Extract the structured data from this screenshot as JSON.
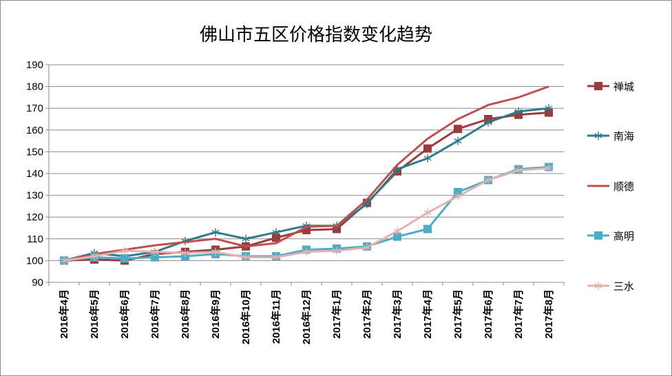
{
  "chart_data": {
    "type": "line",
    "title": "佛山市五区价格指数变化趋势",
    "xlabel": "",
    "ylabel": "",
    "ylim": [
      90,
      190
    ],
    "yticks": [
      90,
      100,
      110,
      120,
      130,
      140,
      150,
      160,
      170,
      180,
      190
    ],
    "grid": true,
    "legend_position": "right",
    "categories": [
      "2016年4月",
      "2016年5月",
      "2016年6月",
      "2016年7月",
      "2016年8月",
      "2016年9月",
      "2016年10月",
      "2016年11月",
      "2016年12月",
      "2017年1月",
      "2017年2月",
      "2017年3月",
      "2017年4月",
      "2017年5月",
      "2017年6月",
      "2017年7月",
      "2017年8月"
    ],
    "series": [
      {
        "name": "禅城",
        "color": "#9b3b3b",
        "marker": "square",
        "values": [
          100,
          100.5,
          100,
          103,
          104,
          105,
          106.5,
          110.5,
          114,
          114.5,
          126.5,
          141,
          151.5,
          160.5,
          165,
          167,
          168
        ]
      },
      {
        "name": "南海",
        "color": "#2e7b8a",
        "marker": "asterisk",
        "values": [
          100,
          103.5,
          102,
          104,
          109,
          113,
          110,
          113,
          116,
          116,
          126,
          142,
          147,
          155,
          163.5,
          168.5,
          170
        ]
      },
      {
        "name": "顺德",
        "color": "#c0504d",
        "marker": "none",
        "values": [
          100,
          103,
          105,
          107,
          108.5,
          110,
          106.5,
          108,
          115.5,
          116,
          128,
          144,
          156,
          165,
          171.5,
          175,
          180
        ]
      },
      {
        "name": "高明",
        "color": "#4bacc6",
        "marker": "square",
        "values": [
          100,
          101.5,
          101,
          101.5,
          102,
          103,
          102,
          102,
          105,
          105.5,
          106.5,
          111,
          114.5,
          131.5,
          137,
          142,
          143
        ]
      },
      {
        "name": "三水",
        "color": "#e6b0ae",
        "marker": "asterisk",
        "values": [
          100,
          102,
          104.5,
          104,
          103.5,
          104,
          101.5,
          101.5,
          104,
          104.5,
          106,
          113.5,
          122,
          129.5,
          137,
          141.5,
          142.5
        ]
      }
    ]
  }
}
